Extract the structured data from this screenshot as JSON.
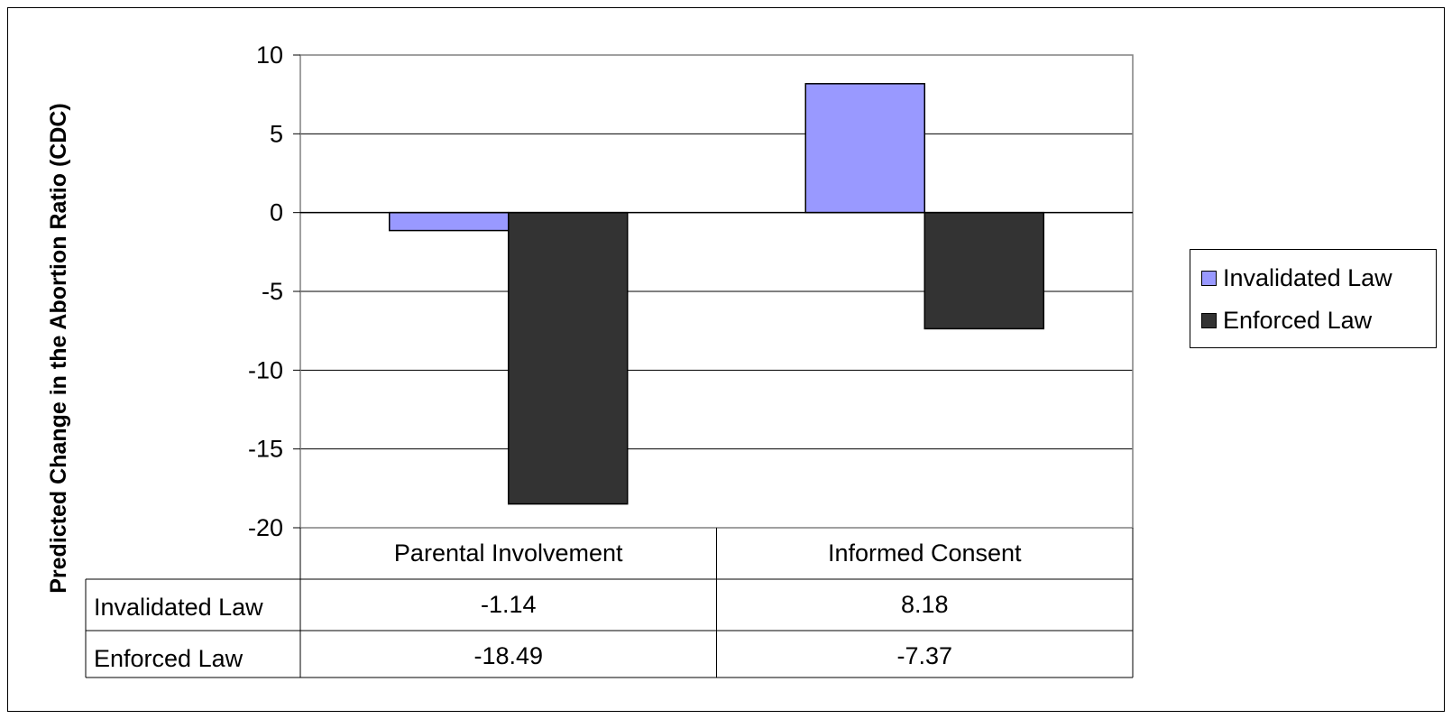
{
  "chart_data": {
    "type": "bar",
    "title": "",
    "xlabel": "",
    "ylabel": "Predicted Change in the Abortion Ratio (CDC)",
    "categories": [
      "Parental Involvement",
      "Informed Consent"
    ],
    "series": [
      {
        "name": "Invalidated Law",
        "values": [
          -1.14,
          8.18
        ],
        "labels": [
          "-1.14",
          "8.18"
        ],
        "color": "#9999ff"
      },
      {
        "name": "Enforced Law",
        "values": [
          -18.49,
          -7.37
        ],
        "labels": [
          "-18.49",
          "-7.37"
        ],
        "color": "#333333"
      }
    ],
    "ylim": [
      -20,
      10
    ],
    "yticks": [
      "10",
      "5",
      "0",
      "-5",
      "-10",
      "-15",
      "-20"
    ],
    "grid": true,
    "legend": "right",
    "data_table": true
  }
}
